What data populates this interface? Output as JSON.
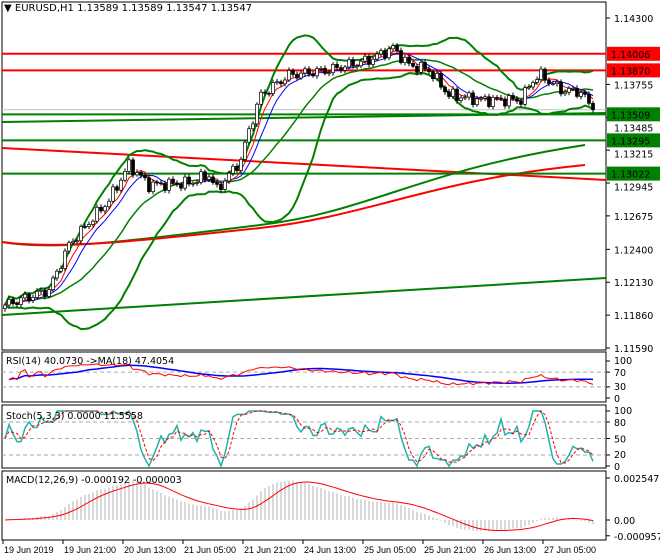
{
  "header": {
    "symbol": "EURUSD,H1",
    "ohlc": "1.13589 1.13589 1.13547 1.13547"
  },
  "chart_data": {
    "type": "candlestick",
    "symbol": "EURUSD",
    "timeframe": "H1",
    "price_ticks": [
      "1.14300",
      "1.13755",
      "1.13485",
      "1.13215",
      "1.12945",
      "1.12675",
      "1.12400",
      "1.12130",
      "1.11860",
      "1.11590"
    ],
    "price_range": [
      1.1159,
      1.143
    ],
    "time_ticks": [
      "19 Jun 2019",
      "19 Jun 21:00",
      "20 Jun 13:00",
      "21 Jun 05:00",
      "21 Jun 21:00",
      "24 Jun 13:00",
      "25 Jun 05:00",
      "25 Jun 21:00",
      "26 Jun 13:00",
      "27 Jun 05:00"
    ],
    "close_keyframes": [
      [
        0,
        1.11943
      ],
      [
        11,
        1.12066
      ],
      [
        16,
        1.12436
      ],
      [
        26,
        1.12805
      ],
      [
        31,
        1.13093
      ],
      [
        36,
        1.12929
      ],
      [
        46,
        1.12945
      ],
      [
        51,
        1.13011
      ],
      [
        53,
        1.12888
      ],
      [
        59,
        1.13134
      ],
      [
        61,
        1.1338
      ],
      [
        64,
        1.13668
      ],
      [
        71,
        1.13832
      ],
      [
        81,
        1.13873
      ],
      [
        91,
        1.13955
      ],
      [
        97,
        1.14054
      ],
      [
        101,
        1.13914
      ],
      [
        106,
        1.13873
      ],
      [
        111,
        1.13668
      ],
      [
        119,
        1.13627
      ],
      [
        129,
        1.13627
      ],
      [
        132,
        1.13791
      ],
      [
        134,
        1.13832
      ],
      [
        139,
        1.13709
      ],
      [
        144,
        1.13692
      ],
      [
        147,
        1.13547
      ]
    ],
    "levels": [
      {
        "label": "1.14006",
        "value": 1.14006,
        "color": "#ff0000"
      },
      {
        "label": "1.13870",
        "value": 1.1387,
        "color": "#ff0000"
      },
      {
        "label": "1.13509",
        "value": 1.13509,
        "color": "#008000"
      },
      {
        "label": "1.13295",
        "value": 1.13295,
        "color": "#008000"
      },
      {
        "label": "1.13022",
        "value": 1.13022,
        "color": "#008000"
      }
    ],
    "current_price": 1.13547,
    "rsi": {
      "label": "RSI(14) 40.0730  ->MA(18) 47.4054",
      "ticks": [
        "100",
        "70",
        "30",
        "0"
      ]
    },
    "stoch": {
      "label": "Stoch(5,3,3) 0.0000 11.5558",
      "ticks": [
        "100",
        "80",
        "50",
        "20",
        "0"
      ]
    },
    "macd": {
      "label": "MACD(12,26,9) -0.000192 -0.000003",
      "ticks": [
        "0.002547",
        "0.00",
        "-0.000957"
      ]
    },
    "colors": {
      "bull": "#ffffff",
      "bear": "#000000",
      "bands": "#008000",
      "ma_fast": "#ff0000",
      "ma_slow": "#0000ff",
      "stoch_main": "#20b2aa",
      "signal": "#ff0000"
    }
  }
}
